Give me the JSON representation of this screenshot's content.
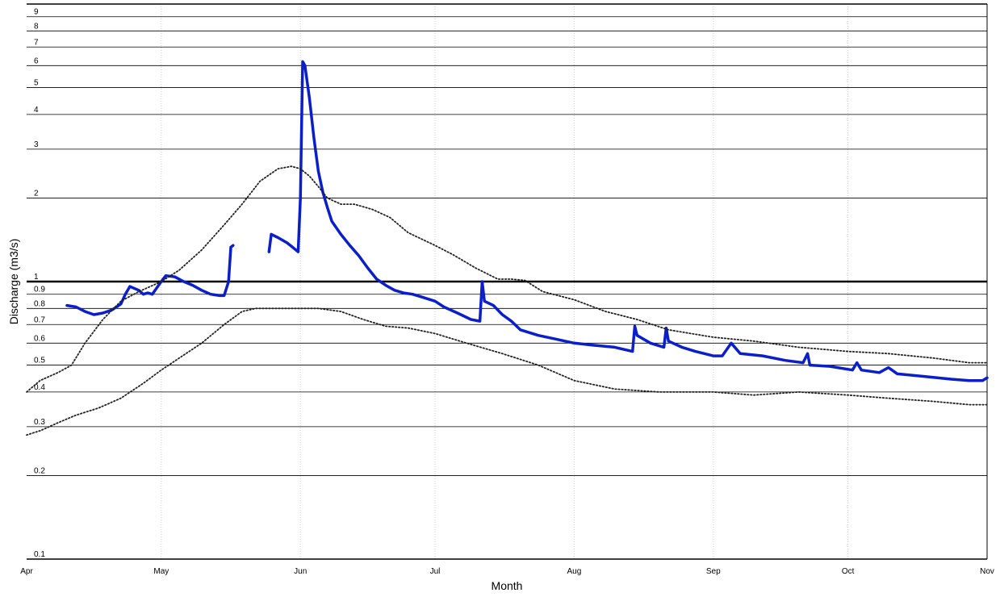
{
  "chart_data": {
    "type": "line",
    "title": "",
    "xlabel": "Month",
    "ylabel": "Discharge (m3/s)",
    "y_scale": "log",
    "ylim": [
      0.1,
      10
    ],
    "xlim": [
      "Apr 1",
      "Nov 1"
    ],
    "x_ticks": [
      "Apr",
      "May",
      "Jun",
      "Jul",
      "Aug",
      "Sep",
      "Oct",
      "Nov"
    ],
    "y_ticks": [
      {
        "value": 0.1,
        "label": "0.1"
      },
      {
        "value": 0.2,
        "label": "0.2"
      },
      {
        "value": 0.3,
        "label": "0.3"
      },
      {
        "value": 0.4,
        "label": "0.4"
      },
      {
        "value": 0.5,
        "label": "0.5"
      },
      {
        "value": 0.6,
        "label": "0.6"
      },
      {
        "value": 0.7,
        "label": "0.7"
      },
      {
        "value": 0.8,
        "label": "0.8"
      },
      {
        "value": 0.9,
        "label": "0.9"
      },
      {
        "value": 1,
        "label": "1"
      },
      {
        "value": 2,
        "label": "2"
      },
      {
        "value": 3,
        "label": "3"
      },
      {
        "value": 4,
        "label": "4"
      },
      {
        "value": 5,
        "label": "5"
      },
      {
        "value": 6,
        "label": "6"
      },
      {
        "value": 7,
        "label": "7"
      },
      {
        "value": 8,
        "label": "8"
      },
      {
        "value": 9,
        "label": "9"
      }
    ],
    "reference_line": {
      "y": 1
    },
    "grid": {
      "horizontal": true,
      "vertical": "dotted"
    },
    "legend": "none",
    "colors": {
      "observed": "#0a1ecc",
      "envelope": "#222222",
      "grid": "#000000",
      "vgrid": "#cccccc",
      "reference": "#000000"
    },
    "series": [
      {
        "role": "observed",
        "style": "solid",
        "segments": [
          [
            [
              "Apr 10",
              0.82
            ],
            [
              "Apr 12",
              0.81
            ],
            [
              "Apr 14",
              0.78
            ],
            [
              "Apr 16",
              0.76
            ],
            [
              "Apr 18",
              0.77
            ],
            [
              "Apr 20",
              0.79
            ],
            [
              "Apr 22",
              0.83
            ],
            [
              "Apr 23",
              0.9
            ],
            [
              "Apr 24",
              0.96
            ],
            [
              "Apr 26",
              0.93
            ],
            [
              "Apr 27",
              0.9
            ],
            [
              "Apr 28",
              0.91
            ],
            [
              "Apr 29",
              0.9
            ],
            [
              "Apr 30",
              0.95
            ],
            [
              "May 1",
              1.0
            ],
            [
              "May 2",
              1.05
            ],
            [
              "May 4",
              1.04
            ],
            [
              "May 6",
              1.0
            ],
            [
              "May 8",
              0.97
            ],
            [
              "May 10",
              0.93
            ],
            [
              "May 12",
              0.9
            ],
            [
              "May 14",
              0.89
            ],
            [
              "May 15",
              0.89
            ],
            [
              "May 16",
              1.0
            ],
            [
              "May 16.5",
              1.33
            ],
            [
              "May 17",
              1.35
            ]
          ],
          [
            [
              "May 25",
              1.28
            ],
            [
              "May 25.5",
              1.48
            ],
            [
              "May 27",
              1.44
            ],
            [
              "May 29",
              1.38
            ],
            [
              "May 30",
              1.34
            ],
            [
              "May 31",
              1.3
            ],
            [
              "May 31.5",
              1.28
            ],
            [
              "Jun 1",
              2.0
            ],
            [
              "Jun 1.5",
              6.2
            ],
            [
              "Jun 2",
              6.0
            ],
            [
              "Jun 3",
              4.6
            ],
            [
              "Jun 4",
              3.3
            ],
            [
              "Jun 5",
              2.5
            ],
            [
              "Jun 6",
              2.1
            ],
            [
              "Jun 7",
              1.85
            ],
            [
              "Jun 8",
              1.65
            ],
            [
              "Jun 10",
              1.48
            ],
            [
              "Jun 12",
              1.35
            ],
            [
              "Jun 14",
              1.24
            ],
            [
              "Jun 16",
              1.12
            ],
            [
              "Jun 18",
              1.02
            ],
            [
              "Jun 20",
              0.97
            ],
            [
              "Jun 22",
              0.93
            ],
            [
              "Jun 24",
              0.91
            ],
            [
              "Jun 26",
              0.9
            ],
            [
              "Jun 28",
              0.88
            ],
            [
              "Jul 1",
              0.85
            ],
            [
              "Jul 3",
              0.81
            ],
            [
              "Jul 6",
              0.77
            ],
            [
              "Jul 9",
              0.73
            ],
            [
              "Jul 11",
              0.72
            ],
            [
              "Jul 11.5",
              1.0
            ],
            [
              "Jul 12",
              0.85
            ],
            [
              "Jul 14",
              0.82
            ],
            [
              "Jul 16",
              0.76
            ],
            [
              "Jul 18",
              0.72
            ],
            [
              "Jul 20",
              0.67
            ],
            [
              "Jul 24",
              0.64
            ],
            [
              "Jul 28",
              0.62
            ],
            [
              "Aug 1",
              0.6
            ],
            [
              "Aug 5",
              0.59
            ],
            [
              "Aug 10",
              0.58
            ],
            [
              "Aug 14",
              0.56
            ],
            [
              "Aug 14.5",
              0.69
            ],
            [
              "Aug 15",
              0.64
            ],
            [
              "Aug 18",
              0.6
            ],
            [
              "Aug 21",
              0.58
            ],
            [
              "Aug 21.5",
              0.68
            ],
            [
              "Aug 22",
              0.61
            ],
            [
              "Aug 25",
              0.58
            ],
            [
              "Aug 28",
              0.56
            ],
            [
              "Sep 1",
              0.54
            ],
            [
              "Sep 3",
              0.54
            ],
            [
              "Sep 5",
              0.6
            ],
            [
              "Sep 7",
              0.55
            ],
            [
              "Sep 12",
              0.54
            ],
            [
              "Sep 17",
              0.52
            ],
            [
              "Sep 21",
              0.51
            ],
            [
              "Sep 22",
              0.55
            ],
            [
              "Sep 22.5",
              0.5
            ],
            [
              "Sep 27",
              0.495
            ],
            [
              "Oct 2",
              0.48
            ],
            [
              "Oct 3",
              0.51
            ],
            [
              "Oct 4",
              0.48
            ],
            [
              "Oct 8",
              0.47
            ],
            [
              "Oct 10",
              0.49
            ],
            [
              "Oct 12",
              0.465
            ],
            [
              "Oct 18",
              0.455
            ],
            [
              "Oct 24",
              0.445
            ],
            [
              "Oct 28",
              0.44
            ],
            [
              "Oct 31",
              0.44
            ],
            [
              "Nov 1",
              0.45
            ]
          ]
        ]
      },
      {
        "role": "envelope-upper",
        "style": "dotted",
        "segments": [
          [
            [
              "Apr 1",
              0.4
            ],
            [
              "Apr 4",
              0.44
            ],
            [
              "Apr 8",
              0.47
            ],
            [
              "Apr 11",
              0.5
            ],
            [
              "Apr 14",
              0.6
            ],
            [
              "Apr 18",
              0.73
            ],
            [
              "Apr 22",
              0.85
            ],
            [
              "Apr 26",
              0.92
            ],
            [
              "May 1",
              1.0
            ],
            [
              "May 5",
              1.1
            ],
            [
              "May 10",
              1.3
            ],
            [
              "May 15",
              1.6
            ],
            [
              "May 19",
              1.9
            ],
            [
              "May 23",
              2.3
            ],
            [
              "May 27",
              2.55
            ],
            [
              "May 30",
              2.6
            ],
            [
              "Jun 1",
              2.55
            ],
            [
              "Jun 3",
              2.4
            ],
            [
              "Jun 5",
              2.2
            ],
            [
              "Jun 7",
              2.0
            ],
            [
              "Jun 10",
              1.9
            ],
            [
              "Jun 13",
              1.9
            ],
            [
              "Jun 17",
              1.82
            ],
            [
              "Jun 21",
              1.7
            ],
            [
              "Jun 25",
              1.5
            ],
            [
              "Jul 1",
              1.35
            ],
            [
              "Jul 5",
              1.25
            ],
            [
              "Jul 10",
              1.12
            ],
            [
              "Jul 15",
              1.02
            ],
            [
              "Jul 18",
              1.02
            ],
            [
              "Jul 21",
              1.01
            ],
            [
              "Jul 25",
              0.92
            ],
            [
              "Aug 1",
              0.86
            ],
            [
              "Aug 8",
              0.78
            ],
            [
              "Aug 15",
              0.73
            ],
            [
              "Aug 22",
              0.67
            ],
            [
              "Sep 1",
              0.63
            ],
            [
              "Sep 10",
              0.61
            ],
            [
              "Sep 20",
              0.58
            ],
            [
              "Oct 1",
              0.56
            ],
            [
              "Oct 10",
              0.55
            ],
            [
              "Oct 20",
              0.53
            ],
            [
              "Oct 28",
              0.51
            ],
            [
              "Nov 1",
              0.51
            ]
          ]
        ]
      },
      {
        "role": "envelope-lower",
        "style": "dotted",
        "segments": [
          [
            [
              "Apr 1",
              0.28
            ],
            [
              "Apr 4",
              0.29
            ],
            [
              "Apr 8",
              0.31
            ],
            [
              "Apr 12",
              0.33
            ],
            [
              "Apr 17",
              0.35
            ],
            [
              "Apr 22",
              0.38
            ],
            [
              "Apr 27",
              0.43
            ],
            [
              "May 1",
              0.48
            ],
            [
              "May 5",
              0.53
            ],
            [
              "May 10",
              0.6
            ],
            [
              "May 15",
              0.7
            ],
            [
              "May 19",
              0.78
            ],
            [
              "May 22",
              0.8
            ],
            [
              "May 25",
              0.8
            ],
            [
              "Jun 1",
              0.8
            ],
            [
              "Jun 5",
              0.8
            ],
            [
              "Jun 10",
              0.78
            ],
            [
              "Jun 15",
              0.73
            ],
            [
              "Jun 20",
              0.69
            ],
            [
              "Jun 25",
              0.68
            ],
            [
              "Jul 1",
              0.65
            ],
            [
              "Jul 8",
              0.6
            ],
            [
              "Jul 16",
              0.55
            ],
            [
              "Jul 24",
              0.5
            ],
            [
              "Aug 1",
              0.44
            ],
            [
              "Aug 10",
              0.41
            ],
            [
              "Aug 20",
              0.4
            ],
            [
              "Sep 1",
              0.4
            ],
            [
              "Sep 10",
              0.39
            ],
            [
              "Sep 20",
              0.4
            ],
            [
              "Oct 1",
              0.39
            ],
            [
              "Oct 10",
              0.38
            ],
            [
              "Oct 20",
              0.37
            ],
            [
              "Oct 28",
              0.36
            ],
            [
              "Nov 1",
              0.36
            ]
          ]
        ]
      }
    ]
  }
}
